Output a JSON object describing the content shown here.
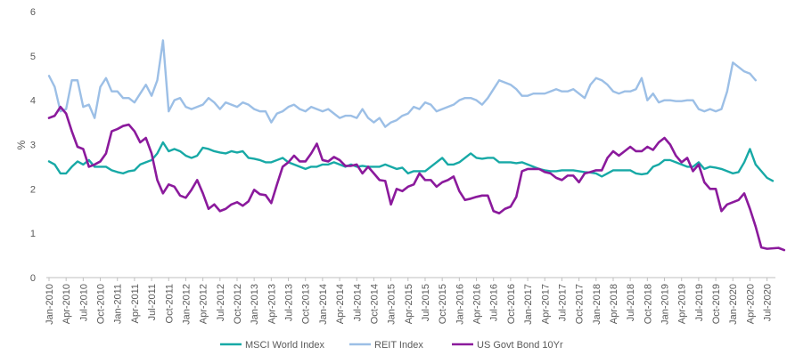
{
  "chart_data": {
    "type": "line",
    "title": "",
    "xlabel": "",
    "ylabel": "%",
    "ylim": [
      0,
      6
    ],
    "yticks": [
      "0",
      "1",
      "2",
      "3",
      "4",
      "5",
      "6"
    ],
    "grid": false,
    "legend_position": "bottom",
    "x_start": "2010-01",
    "x_labels": [
      "Jan-2010",
      "Apr-2010",
      "Jul-2010",
      "Oct-2010",
      "Jan-2011",
      "Apr-2011",
      "Jul-2011",
      "Oct-2011",
      "Jan-2012",
      "Apr-2012",
      "Jul-2012",
      "Oct-2012",
      "Jan-2013",
      "Apr-2013",
      "Jul-2013",
      "Oct-2013",
      "Jan-2014",
      "Apr-2014",
      "Jul-2014",
      "Oct-2014",
      "Jan-2015",
      "Apr-2015",
      "Jul-2015",
      "Oct-2015",
      "Jan-2016",
      "Apr-2016",
      "Jul-2016",
      "Oct-2016",
      "Jan-2017",
      "Apr-2017",
      "Jul-2017",
      "Oct-2017",
      "Jan-2018",
      "Apr-2018",
      "Jul-2018",
      "Oct-2018",
      "Jan-2019",
      "Apr-2019",
      "Jul-2019",
      "Oct-2019",
      "Jan-2020",
      "Apr-2020",
      "Jul-2020"
    ],
    "series": [
      {
        "name": "MSCI World Index",
        "color": "#17a9a6",
        "values": [
          2.62,
          2.55,
          2.35,
          2.35,
          2.5,
          2.62,
          2.55,
          2.65,
          2.5,
          2.5,
          2.5,
          2.42,
          2.38,
          2.35,
          2.4,
          2.42,
          2.55,
          2.6,
          2.65,
          2.8,
          3.05,
          2.85,
          2.9,
          2.85,
          2.75,
          2.7,
          2.75,
          2.93,
          2.9,
          2.85,
          2.82,
          2.8,
          2.85,
          2.82,
          2.85,
          2.7,
          2.68,
          2.65,
          2.6,
          2.6,
          2.65,
          2.7,
          2.6,
          2.55,
          2.5,
          2.45,
          2.5,
          2.5,
          2.55,
          2.55,
          2.6,
          2.55,
          2.5,
          2.55,
          2.5,
          2.52,
          2.5,
          2.5,
          2.5,
          2.55,
          2.5,
          2.45,
          2.48,
          2.35,
          2.4,
          2.4,
          2.4,
          2.5,
          2.6,
          2.7,
          2.55,
          2.55,
          2.6,
          2.7,
          2.8,
          2.7,
          2.68,
          2.7,
          2.7,
          2.6,
          2.6,
          2.6,
          2.58,
          2.6,
          2.55,
          2.5,
          2.45,
          2.42,
          2.4,
          2.4,
          2.42,
          2.42,
          2.42,
          2.4,
          2.38,
          2.37,
          2.35,
          2.28,
          2.35,
          2.42,
          2.42,
          2.42,
          2.42,
          2.35,
          2.33,
          2.35,
          2.5,
          2.55,
          2.65,
          2.65,
          2.6,
          2.55,
          2.5,
          2.5,
          2.6,
          2.45,
          2.5,
          2.48,
          2.45,
          2.4,
          2.35,
          2.38,
          2.6,
          2.9,
          2.55,
          2.4,
          2.25,
          2.18
        ]
      },
      {
        "name": "REIT Index",
        "color": "#9cbfe6",
        "values": [
          4.55,
          4.3,
          3.75,
          3.8,
          4.45,
          4.45,
          3.85,
          3.9,
          3.6,
          4.3,
          4.5,
          4.2,
          4.2,
          4.05,
          4.05,
          3.95,
          4.15,
          4.35,
          4.1,
          4.45,
          5.35,
          3.75,
          4.0,
          4.05,
          3.85,
          3.8,
          3.85,
          3.9,
          4.05,
          3.95,
          3.8,
          3.95,
          3.9,
          3.85,
          3.95,
          3.9,
          3.8,
          3.75,
          3.75,
          3.5,
          3.7,
          3.75,
          3.85,
          3.9,
          3.8,
          3.75,
          3.85,
          3.8,
          3.75,
          3.8,
          3.7,
          3.6,
          3.65,
          3.65,
          3.6,
          3.8,
          3.6,
          3.5,
          3.6,
          3.4,
          3.5,
          3.55,
          3.65,
          3.7,
          3.85,
          3.8,
          3.95,
          3.9,
          3.75,
          3.8,
          3.85,
          3.9,
          4.0,
          4.05,
          4.05,
          4.0,
          3.9,
          4.05,
          4.25,
          4.45,
          4.4,
          4.35,
          4.25,
          4.1,
          4.1,
          4.15,
          4.15,
          4.15,
          4.2,
          4.25,
          4.2,
          4.2,
          4.25,
          4.15,
          4.05,
          4.35,
          4.5,
          4.45,
          4.35,
          4.2,
          4.15,
          4.2,
          4.2,
          4.25,
          4.5,
          4.0,
          4.15,
          3.95,
          4.0,
          4.0,
          3.98,
          3.98,
          4.0,
          4.0,
          3.8,
          3.75,
          3.8,
          3.75,
          3.8,
          4.2,
          4.85,
          4.75,
          4.65,
          4.6,
          4.45
        ]
      },
      {
        "name": "US Govt Bond 10Yr",
        "color": "#8b1a9c",
        "values": [
          3.6,
          3.65,
          3.85,
          3.7,
          3.3,
          2.95,
          2.9,
          2.5,
          2.55,
          2.62,
          2.8,
          3.3,
          3.35,
          3.42,
          3.45,
          3.3,
          3.05,
          3.15,
          2.8,
          2.2,
          1.9,
          2.1,
          2.05,
          1.85,
          1.8,
          1.98,
          2.2,
          1.9,
          1.55,
          1.65,
          1.5,
          1.55,
          1.65,
          1.7,
          1.62,
          1.72,
          1.98,
          1.88,
          1.86,
          1.68,
          2.1,
          2.5,
          2.6,
          2.75,
          2.62,
          2.62,
          2.8,
          3.02,
          2.65,
          2.62,
          2.72,
          2.65,
          2.52,
          2.52,
          2.55,
          2.35,
          2.5,
          2.35,
          2.2,
          2.18,
          1.65,
          2.0,
          1.95,
          2.05,
          2.1,
          2.35,
          2.2,
          2.2,
          2.05,
          2.15,
          2.2,
          2.28,
          1.95,
          1.75,
          1.78,
          1.82,
          1.85,
          1.85,
          1.5,
          1.45,
          1.55,
          1.6,
          1.82,
          2.4,
          2.45,
          2.45,
          2.45,
          2.38,
          2.35,
          2.25,
          2.2,
          2.3,
          2.3,
          2.15,
          2.35,
          2.38,
          2.42,
          2.42,
          2.7,
          2.85,
          2.75,
          2.85,
          2.95,
          2.85,
          2.85,
          2.95,
          2.88,
          3.05,
          3.15,
          3.0,
          2.75,
          2.6,
          2.7,
          2.4,
          2.55,
          2.15,
          2.0,
          2.0,
          1.5,
          1.65,
          1.7,
          1.75,
          1.9,
          1.55,
          1.15,
          0.68,
          0.65,
          0.66,
          0.67,
          0.62
        ]
      }
    ]
  }
}
